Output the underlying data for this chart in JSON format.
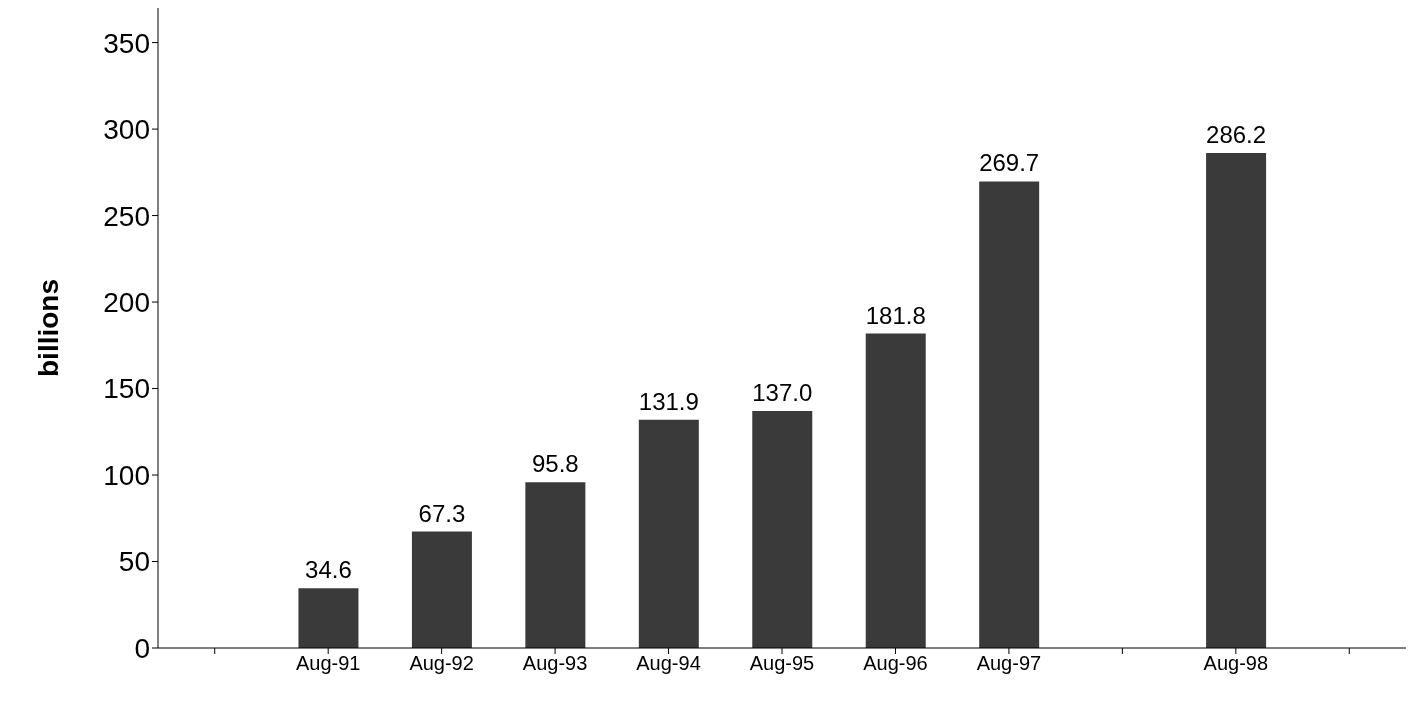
{
  "chart_data": {
    "type": "bar",
    "ylabel": "billions",
    "categories": [
      null,
      "Aug-91",
      "Aug-92",
      "Aug-93",
      "Aug-94",
      "Aug-95",
      "Aug-96",
      "Aug-97",
      null,
      "Aug-98",
      null
    ],
    "values": [
      null,
      34.6,
      67.3,
      95.8,
      131.9,
      137.0,
      181.8,
      269.7,
      null,
      286.2,
      null
    ],
    "value_labels": [
      null,
      "34.6",
      "67.3",
      "95.8",
      "131.9",
      "137.0",
      "181.8",
      "269.7",
      null,
      "286.2",
      null
    ],
    "color": "#3a3a3a",
    "ylim": [
      0,
      370
    ],
    "yticks": [
      0,
      50,
      100,
      150,
      200,
      250,
      300,
      350
    ]
  }
}
